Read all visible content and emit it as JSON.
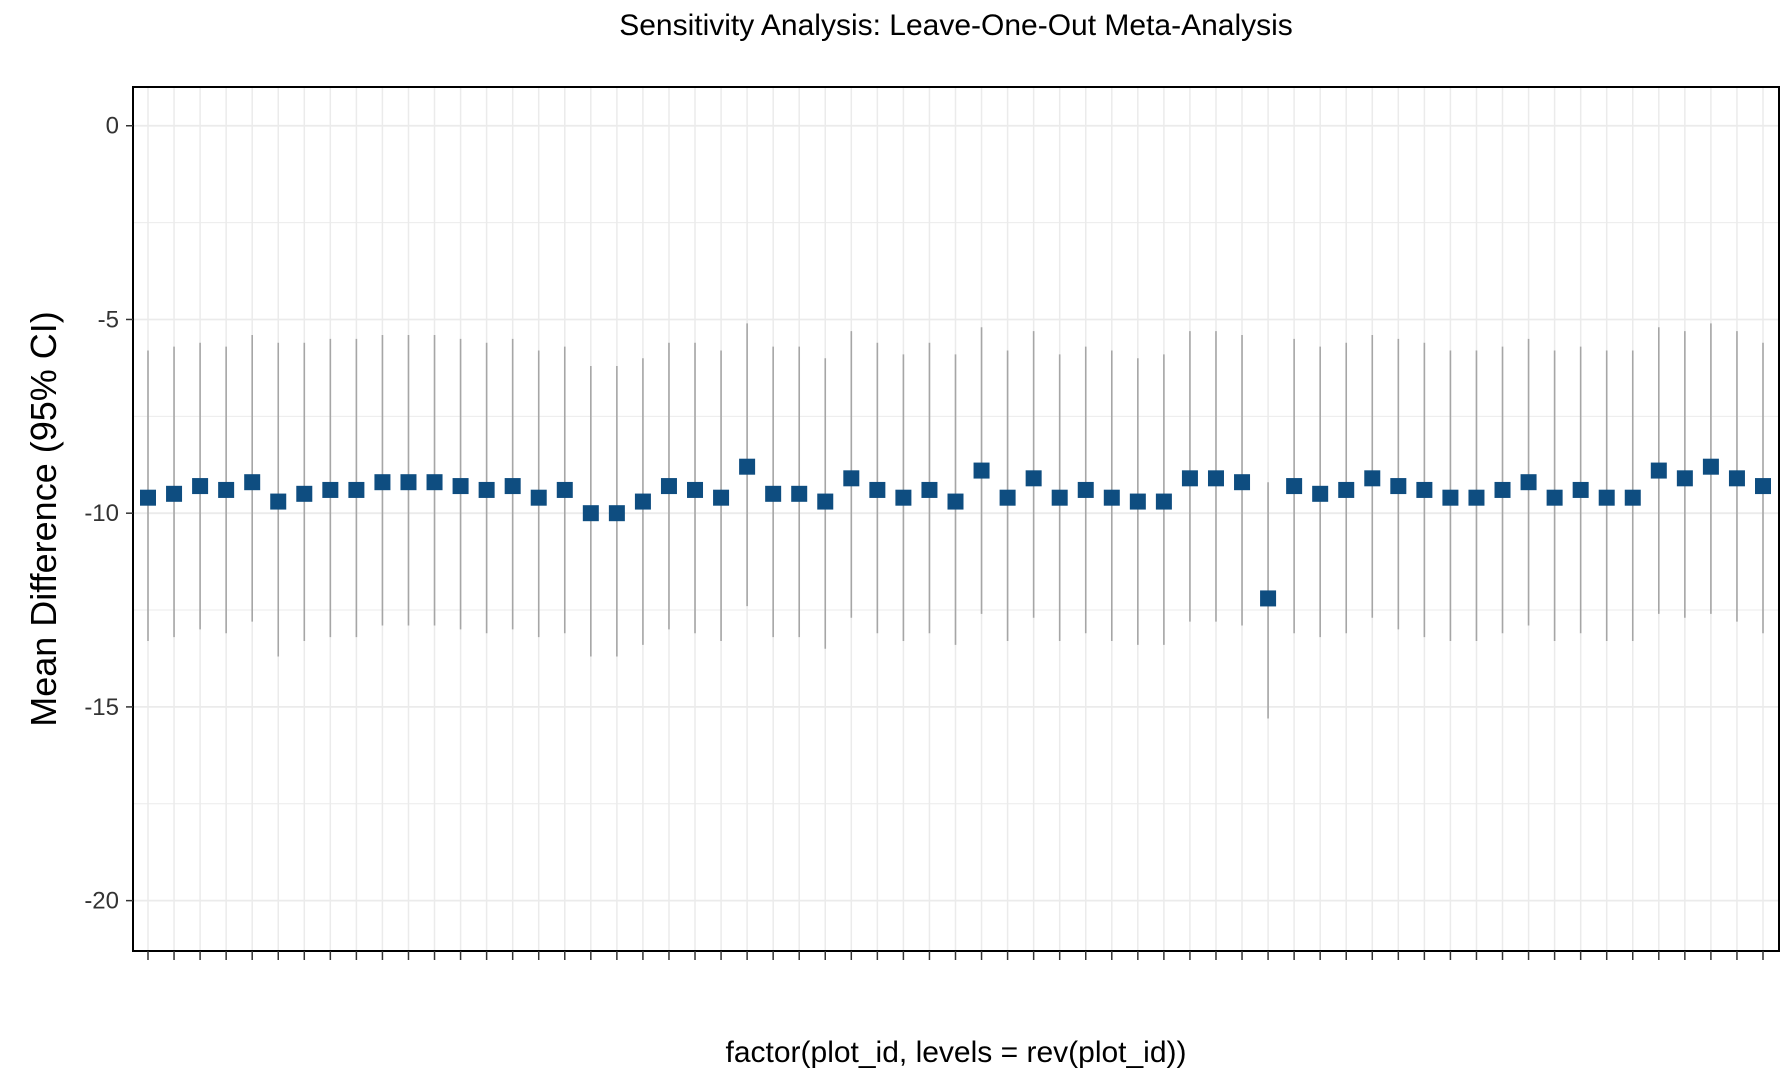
{
  "chart_data": {
    "type": "scatter",
    "title": "Sensitivity Analysis: Leave-One-Out Meta-Analysis",
    "xlabel": "factor(plot_id, levels = rev(plot_id))",
    "ylabel": "Mean Difference (95% CI)",
    "ylim": [
      -21.3,
      1.0
    ],
    "yticks": [
      0,
      -5,
      -10,
      -15,
      -20
    ],
    "yticklabels": [
      "0",
      "-5",
      "-10",
      "-15",
      "-20"
    ],
    "grid": true,
    "legend": "none",
    "x_tick_labels_visible": false,
    "marker": "square",
    "colors": {
      "point": "#0E4D80",
      "errorbar": "#A6A6A6",
      "grid": "#EBEBEB",
      "panel_border": "#000000",
      "axis_text": "#333333"
    },
    "series": [
      {
        "estimates": [
          -9.6,
          -9.5,
          -9.3,
          -9.4,
          -9.2,
          -9.7,
          -9.5,
          -9.4,
          -9.4,
          -9.2,
          -9.2,
          -9.2,
          -9.3,
          -9.4,
          -9.3,
          -9.6,
          -9.4,
          -10.0,
          -10.0,
          -9.7,
          -9.3,
          -9.4,
          -9.6,
          -8.8,
          -9.5,
          -9.5,
          -9.7,
          -9.1,
          -9.4,
          -9.6,
          -9.4,
          -9.7,
          -8.9,
          -9.6,
          -9.1,
          -9.6,
          -9.4,
          -9.6,
          -9.7,
          -9.7,
          -9.1,
          -9.1,
          -9.2,
          -12.2,
          -9.3,
          -9.5,
          -9.4,
          -9.1,
          -9.3,
          -9.4,
          -9.6,
          -9.6,
          -9.4,
          -9.2,
          -9.6,
          -9.4,
          -9.6,
          -9.6,
          -8.9,
          -9.1,
          -8.8,
          -9.1,
          -9.3
        ],
        "ci_lower": [
          -13.3,
          -13.2,
          -13.0,
          -13.1,
          -12.8,
          -13.7,
          -13.3,
          -13.2,
          -13.2,
          -12.9,
          -12.9,
          -12.9,
          -13.0,
          -13.1,
          -13.0,
          -13.2,
          -13.1,
          -13.7,
          -13.7,
          -13.4,
          -13.0,
          -13.1,
          -13.3,
          -12.4,
          -13.2,
          -13.2,
          -13.5,
          -12.7,
          -13.1,
          -13.3,
          -13.1,
          -13.4,
          -12.6,
          -13.3,
          -12.7,
          -13.3,
          -13.1,
          -13.3,
          -13.4,
          -13.4,
          -12.8,
          -12.8,
          -12.9,
          -15.3,
          -13.1,
          -13.2,
          -13.1,
          -12.7,
          -13.0,
          -13.2,
          -13.3,
          -13.3,
          -13.1,
          -12.9,
          -13.3,
          -13.1,
          -13.3,
          -13.3,
          -12.6,
          -12.7,
          -12.6,
          -12.8,
          -13.1
        ],
        "ci_upper": [
          -5.8,
          -5.7,
          -5.6,
          -5.7,
          -5.4,
          -5.6,
          -5.6,
          -5.5,
          -5.5,
          -5.4,
          -5.4,
          -5.4,
          -5.5,
          -5.6,
          -5.5,
          -5.8,
          -5.7,
          -6.2,
          -6.2,
          -6.0,
          -5.6,
          -5.6,
          -5.8,
          -5.1,
          -5.7,
          -5.7,
          -6.0,
          -5.3,
          -5.6,
          -5.9,
          -5.6,
          -5.9,
          -5.2,
          -5.8,
          -5.3,
          -5.9,
          -5.7,
          -5.8,
          -6.0,
          -5.9,
          -5.3,
          -5.3,
          -5.4,
          -9.2,
          -5.5,
          -5.7,
          -5.6,
          -5.4,
          -5.5,
          -5.6,
          -5.8,
          -5.8,
          -5.7,
          -5.5,
          -5.8,
          -5.7,
          -5.8,
          -5.8,
          -5.2,
          -5.3,
          -5.1,
          -5.3,
          -5.6
        ]
      }
    ]
  }
}
